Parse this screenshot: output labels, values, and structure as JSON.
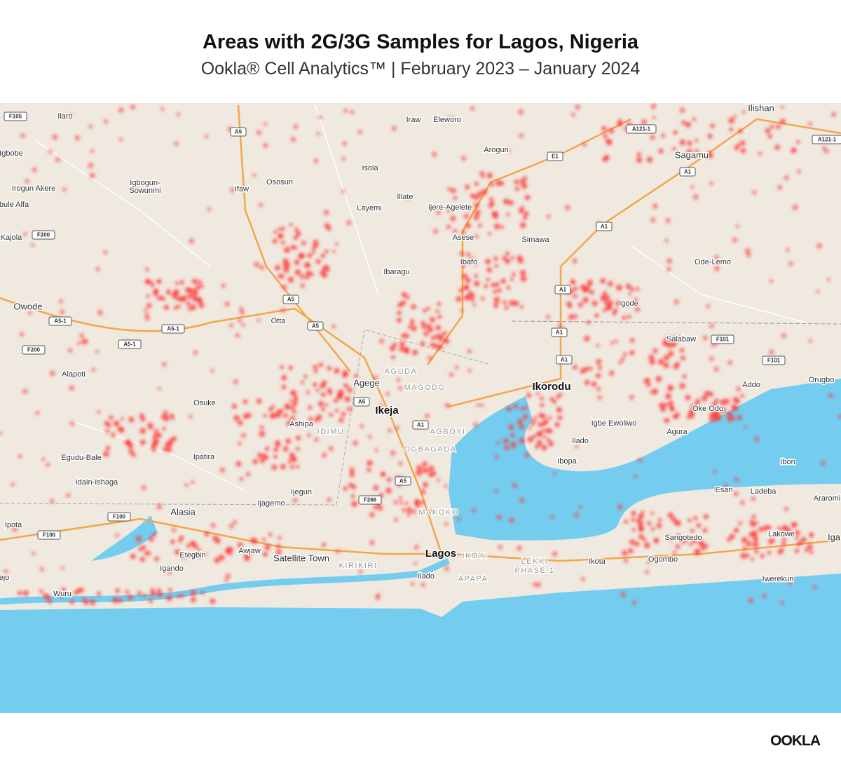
{
  "header": {
    "title": "Areas with 2G/3G Samples for Lagos, Nigeria",
    "subtitle": "Ookla® Cell Analytics™ | February 2023 – January 2024"
  },
  "map": {
    "places": [
      "Ilaro",
      "Igbobe",
      "Irogun Akere",
      "bule Alfa",
      "Igbogun-",
      "Sowunmi",
      "Ifaw",
      "Ososun",
      "Isola",
      "Iraw",
      "Eleworo",
      "Arogun",
      "Ilishan",
      "Sagamu",
      "Illate",
      "Layemi",
      "Ijere-Agelete",
      "Asese",
      "Simawa",
      "Ibafo",
      "Ode-Lemo",
      "Ibaragu",
      "Kajola",
      "Owode",
      "Otta",
      "Igode",
      "Salabaw",
      "Alapoti",
      "Osuke",
      "Agege",
      "AGUDA",
      "MAGODO",
      "Ikeja",
      "Ikorodu",
      "Addo",
      "Orugbo",
      "Oke Odo",
      "Ashipa",
      "IDIMU",
      "AGBOYI",
      "Igbe Ewoliwo",
      "Agura",
      "Ilado",
      "OGBAGADA",
      "Egudu-Bale",
      "Ipatira",
      "Ibopa",
      "Ibon",
      "Idain-Ishaga",
      "Ijegun",
      "Esan",
      "Ladeba",
      "Araromi",
      "Ijagemo",
      "MAKOKO",
      "Alasia",
      "Ipota",
      "Sangotedo",
      "Lakowe",
      "Iga",
      "Etegbin",
      "Awjaw",
      "Satellite Town",
      "Lagos",
      "IKOYI",
      "LEKKI",
      "PHASE 1",
      "Ikota",
      "Ogombo",
      "Igando",
      "KIRIKIRI",
      "Ilado",
      "APAPA",
      "Iwerekun",
      "Wuru",
      "ejo"
    ],
    "road_labels": [
      "F105",
      "A5",
      "A121-1",
      "E1",
      "A121-1",
      "A1",
      "F200",
      "A1",
      "A5",
      "A5-1",
      "A5",
      "A5-1",
      "A5-1",
      "F200",
      "A1",
      "A1",
      "F101",
      "A1",
      "F101",
      "A5",
      "A1",
      "A5",
      "F266",
      "F100",
      "F100"
    ]
  },
  "footer": {
    "logo": "OOKLA"
  }
}
